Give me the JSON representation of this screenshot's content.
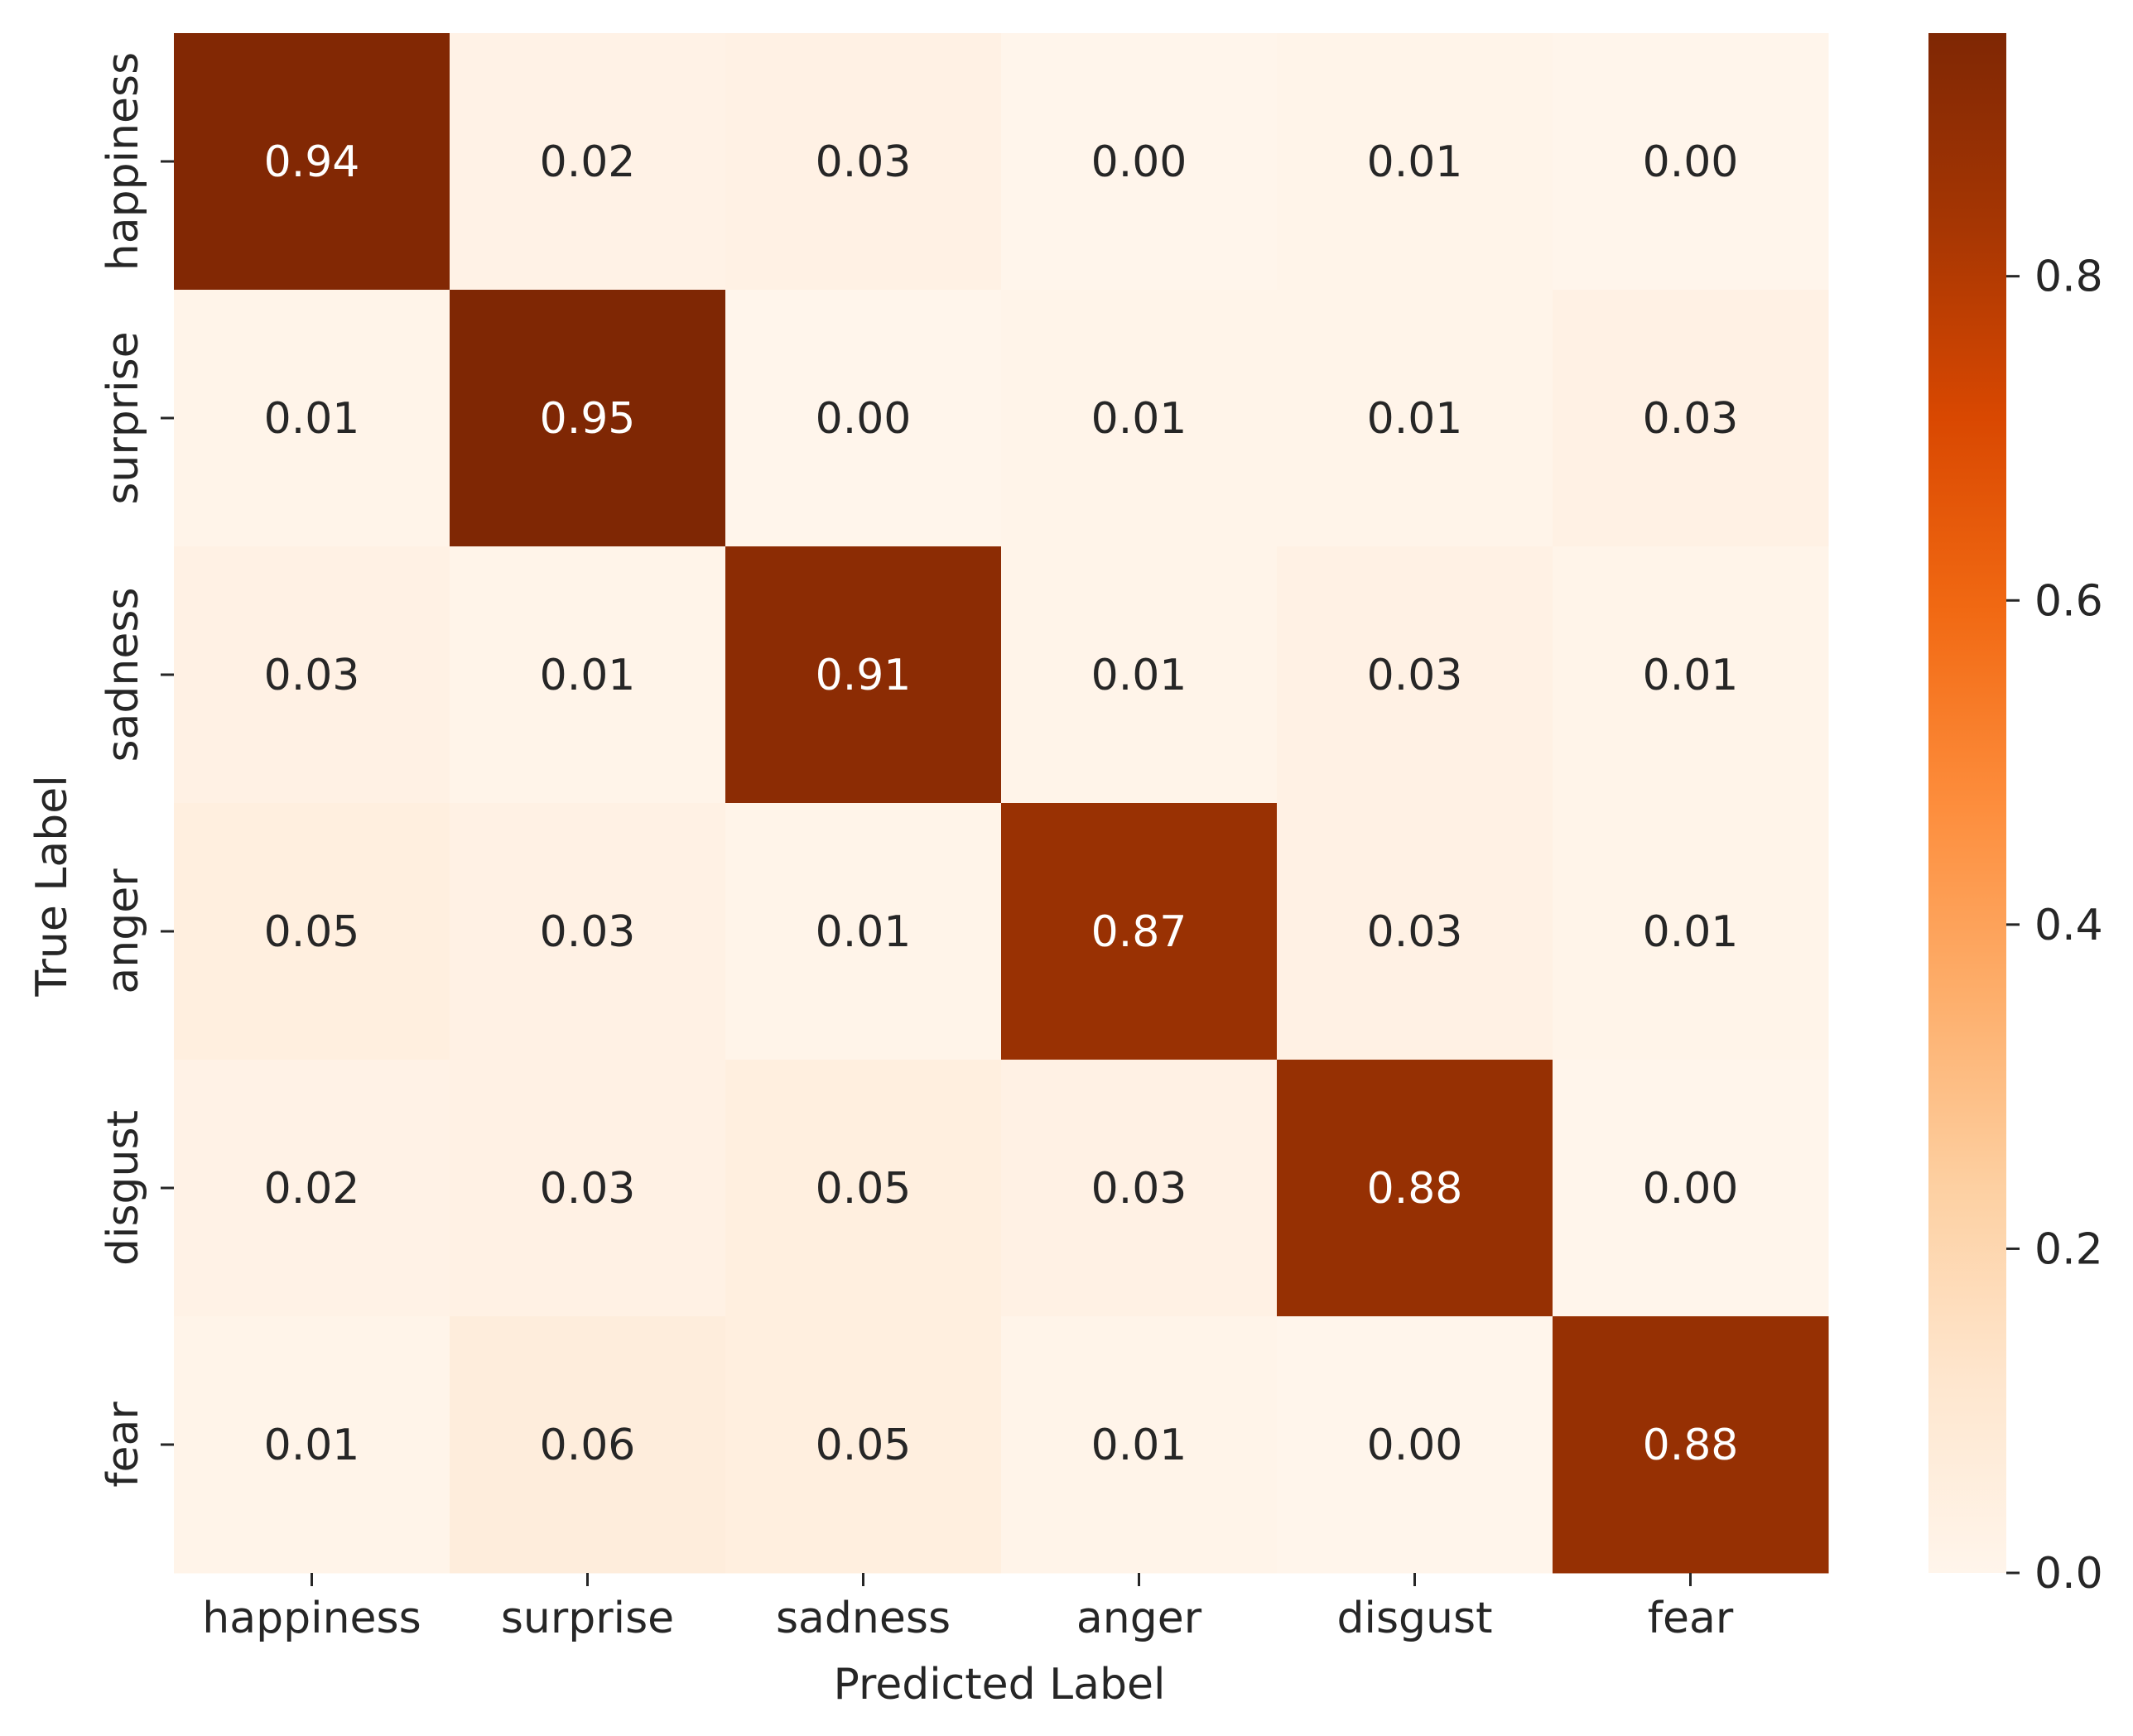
{
  "chart_data": {
    "type": "heatmap",
    "title": "",
    "xlabel": "Predicted Label",
    "ylabel": "True Label",
    "x_categories": [
      "happiness",
      "surprise",
      "sadness",
      "anger",
      "disgust",
      "fear"
    ],
    "y_categories": [
      "happiness",
      "surprise",
      "sadness",
      "anger",
      "disgust",
      "fear"
    ],
    "values": [
      [
        0.94,
        0.02,
        0.03,
        0.0,
        0.01,
        0.0
      ],
      [
        0.01,
        0.95,
        0.0,
        0.01,
        0.01,
        0.03
      ],
      [
        0.03,
        0.01,
        0.91,
        0.01,
        0.03,
        0.01
      ],
      [
        0.05,
        0.03,
        0.01,
        0.87,
        0.03,
        0.01
      ],
      [
        0.02,
        0.03,
        0.05,
        0.03,
        0.88,
        0.0
      ],
      [
        0.01,
        0.06,
        0.05,
        0.01,
        0.0,
        0.88
      ]
    ],
    "value_format": "2 decimals",
    "colorbar": {
      "range": [
        0,
        0.95
      ],
      "ticks": [
        0.0,
        0.2,
        0.4,
        0.6,
        0.8
      ],
      "tick_labels": [
        "0.0",
        "0.2",
        "0.4",
        "0.6",
        "0.8"
      ],
      "colormap": "Oranges",
      "color_stops": [
        "#fff5eb",
        "#fee6ce",
        "#fdd0a2",
        "#fdae6b",
        "#fd8d3c",
        "#f16913",
        "#d94801",
        "#a63603",
        "#7f2704"
      ]
    },
    "annotation_colors": {
      "dark_cell_text": "#ffffff",
      "light_cell_text": "#262626"
    }
  }
}
